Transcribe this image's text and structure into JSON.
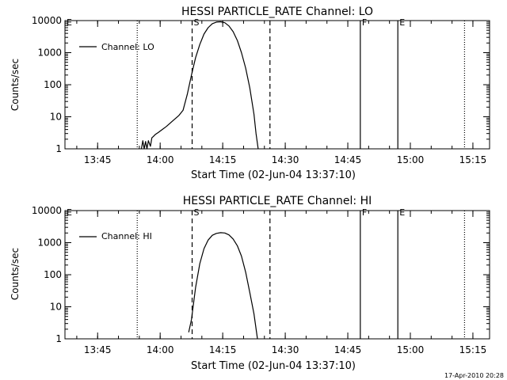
{
  "chart_data": [
    {
      "type": "line",
      "title": "HESSI PARTICLE_RATE Channel: LO",
      "xlabel": "Start Time (02-Jun-04 13:37:10)",
      "ylabel": "Counts/sec",
      "yscale": "log",
      "ylim": [
        1,
        10000
      ],
      "xlim": [
        "13:37:10",
        "15:19:00"
      ],
      "grid": false,
      "legend": {
        "position": "top-left",
        "entries": [
          "Channel: LO"
        ]
      },
      "x_ticks": [
        "13:45",
        "14:00",
        "14:15",
        "14:30",
        "14:45",
        "15:00",
        "15:15"
      ],
      "y_ticks": [
        "1",
        "10",
        "100",
        "1000",
        "10000"
      ],
      "annotations": [
        {
          "label": "E",
          "time": "13:37:10",
          "style": "none"
        },
        {
          "label": "",
          "time": "13:54:30",
          "style": "dotted"
        },
        {
          "label": "S",
          "time": "14:07:40",
          "style": "dashed"
        },
        {
          "label": "",
          "time": "14:26:20",
          "style": "dashed"
        },
        {
          "label": "F",
          "time": "14:48:00",
          "style": "solid"
        },
        {
          "label": "E",
          "time": "14:57:00",
          "style": "solid"
        },
        {
          "label": "",
          "time": "15:13:00",
          "style": "dotted"
        }
      ],
      "series": [
        {
          "name": "Channel: LO",
          "x": [
            "13:55:30",
            "13:55:50",
            "13:56:10",
            "13:56:30",
            "13:56:50",
            "13:57:10",
            "13:57:40",
            "13:58:00",
            "13:58:20",
            "13:58:50",
            "13:59:30",
            "14:00:30",
            "14:01:30",
            "14:02:30",
            "14:03:30",
            "14:04:30",
            "14:05:30",
            "14:06:30",
            "14:07:30",
            "14:08:30",
            "14:09:30",
            "14:10:30",
            "14:11:30",
            "14:12:30",
            "14:13:30",
            "14:14:30",
            "14:15:30",
            "14:16:30",
            "14:17:30",
            "14:18:30",
            "14:19:30",
            "14:20:30",
            "14:21:30",
            "14:22:30",
            "14:23:00",
            "14:23:30"
          ],
          "y": [
            1,
            1.8,
            1,
            1.7,
            1,
            1.8,
            1.2,
            2.2,
            2.4,
            2.8,
            3.2,
            4,
            5,
            6.5,
            8.5,
            11,
            16,
            50,
            200,
            700,
            1800,
            3800,
            6000,
            8000,
            9000,
            9200,
            8600,
            6800,
            4500,
            2400,
            1000,
            330,
            80,
            12,
            3,
            1
          ]
        }
      ]
    },
    {
      "type": "line",
      "title": "HESSI PARTICLE_RATE Channel: HI",
      "xlabel": "Start Time (02-Jun-04 13:37:10)",
      "ylabel": "Counts/sec",
      "yscale": "log",
      "ylim": [
        1,
        10000
      ],
      "xlim": [
        "13:37:10",
        "15:19:00"
      ],
      "grid": false,
      "legend": {
        "position": "top-left",
        "entries": [
          "Channel: HI"
        ]
      },
      "x_ticks": [
        "13:45",
        "14:00",
        "14:15",
        "14:30",
        "14:45",
        "15:00",
        "15:15"
      ],
      "y_ticks": [
        "1",
        "10",
        "100",
        "1000",
        "10000"
      ],
      "annotations": [
        {
          "label": "E",
          "time": "13:37:10",
          "style": "none"
        },
        {
          "label": "",
          "time": "13:54:30",
          "style": "dotted"
        },
        {
          "label": "S",
          "time": "14:07:40",
          "style": "dashed"
        },
        {
          "label": "",
          "time": "14:26:20",
          "style": "dashed"
        },
        {
          "label": "F",
          "time": "14:48:00",
          "style": "solid"
        },
        {
          "label": "E",
          "time": "14:57:00",
          "style": "solid"
        },
        {
          "label": "",
          "time": "15:13:00",
          "style": "dotted"
        }
      ],
      "series": [
        {
          "name": "Channel: HI",
          "x": [
            "14:06:50",
            "14:07:30",
            "14:08:30",
            "14:09:30",
            "14:10:30",
            "14:11:30",
            "14:12:30",
            "14:13:30",
            "14:14:30",
            "14:15:30",
            "14:16:30",
            "14:17:30",
            "14:18:30",
            "14:19:30",
            "14:20:30",
            "14:21:30",
            "14:22:30",
            "14:23:20"
          ],
          "y": [
            1.6,
            4,
            40,
            220,
            650,
            1200,
            1700,
            1950,
            2050,
            2000,
            1750,
            1300,
            800,
            380,
            120,
            28,
            6,
            1
          ]
        }
      ]
    }
  ],
  "footer": {
    "timestamp": "17-Apr-2010 20:28"
  }
}
